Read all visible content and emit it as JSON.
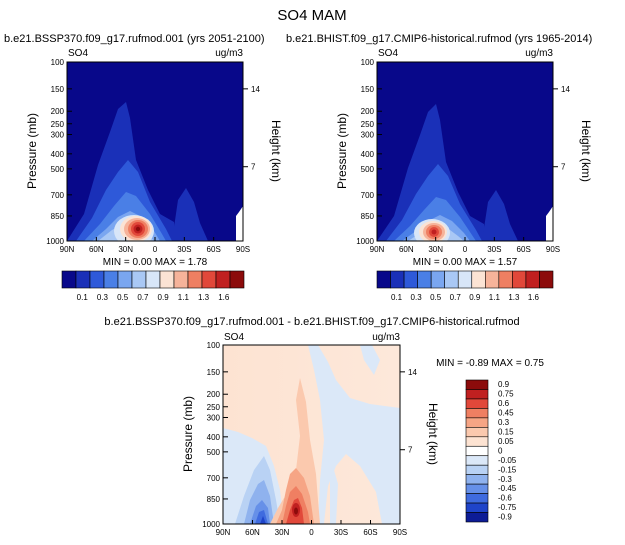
{
  "page": {
    "title": "SO4  MAM"
  },
  "chart_data": [
    {
      "type": "heatmap",
      "panel_title": "b.e21.BSSP370.f09_g17.rufmod.001 (yrs 2051-2100)",
      "variable_label": "SO4",
      "units_label": "ug/m3",
      "stats": "MIN =    0.00  MAX =    1.78",
      "ylabel": "Pressure (mb)",
      "y2label": "Height (km)",
      "x_ticks": [
        "90N",
        "60N",
        "30N",
        "0",
        "30S",
        "60S",
        "90S"
      ],
      "y_ticks": [
        "100",
        "150",
        "200",
        "250",
        "300",
        "400",
        "500",
        "700",
        "850",
        "1000"
      ],
      "y2_ticks": [
        "14",
        "7"
      ],
      "colorbar": {
        "labels": [
          "0.1",
          "0.3",
          "0.5",
          "0.7",
          "0.9",
          "1.1",
          "1.3",
          "1.6"
        ],
        "colors": [
          "#08088a",
          "#1a30b8",
          "#2e59d9",
          "#4a7fe6",
          "#7aa6f0",
          "#a9c8f5",
          "#d8e6f8",
          "#fbe3d4",
          "#f6b39a",
          "#ef7f62",
          "#e1483a",
          "#c02020",
          "#8c0b0b"
        ]
      }
    },
    {
      "type": "heatmap",
      "panel_title": "b.e21.BHIST.f09_g17.CMIP6-historical.rufmod (yrs 1965-2014)",
      "variable_label": "SO4",
      "units_label": "ug/m3",
      "stats": "MIN =    0.00  MAX =    1.57",
      "ylabel": "Pressure (mb)",
      "y2label": "Height (km)",
      "x_ticks": [
        "90N",
        "60N",
        "30N",
        "0",
        "30S",
        "60S",
        "90S"
      ],
      "y_ticks": [
        "100",
        "150",
        "200",
        "250",
        "300",
        "400",
        "500",
        "700",
        "850",
        "1000"
      ],
      "y2_ticks": [
        "14",
        "7"
      ],
      "colorbar": {
        "labels": [
          "0.1",
          "0.3",
          "0.5",
          "0.7",
          "0.9",
          "1.1",
          "1.3",
          "1.6"
        ],
        "colors": [
          "#08088a",
          "#1a30b8",
          "#2e59d9",
          "#4a7fe6",
          "#7aa6f0",
          "#a9c8f5",
          "#d8e6f8",
          "#fbe3d4",
          "#f6b39a",
          "#ef7f62",
          "#e1483a",
          "#c02020",
          "#8c0b0b"
        ]
      }
    },
    {
      "type": "heatmap",
      "panel_title": "b.e21.BSSP370.f09_g17.rufmod.001  -  b.e21.BHIST.f09_g17.CMIP6-historical.rufmod",
      "variable_label": "SO4",
      "units_label": "ug/m3",
      "stats": "MIN =  -0.89  MAX =    0.75",
      "ylabel": "Pressure (mb)",
      "y2label": "Height (km)",
      "x_ticks": [
        "90N",
        "60N",
        "30N",
        "0",
        "30S",
        "60S",
        "90S"
      ],
      "y_ticks": [
        "100",
        "150",
        "200",
        "250",
        "300",
        "400",
        "500",
        "700",
        "850",
        "1000"
      ],
      "y2_ticks": [
        "14",
        "7"
      ],
      "colorbar": {
        "labels": [
          "0.9",
          "0.75",
          "0.6",
          "0.45",
          "0.3",
          "0.15",
          "0.05",
          "0",
          "-0.05",
          "-0.15",
          "-0.3",
          "-0.45",
          "-0.6",
          "-0.75",
          "-0.9"
        ],
        "colors": [
          "#8c0b0b",
          "#c02020",
          "#e1483a",
          "#ef7f62",
          "#f6a585",
          "#fbc9ae",
          "#fde3d2",
          "#ffffff",
          "#dbe8f8",
          "#b9d2f4",
          "#8fb2ee",
          "#6690e8",
          "#3f6bdf",
          "#1f44c9",
          "#0d1c96"
        ]
      }
    }
  ]
}
